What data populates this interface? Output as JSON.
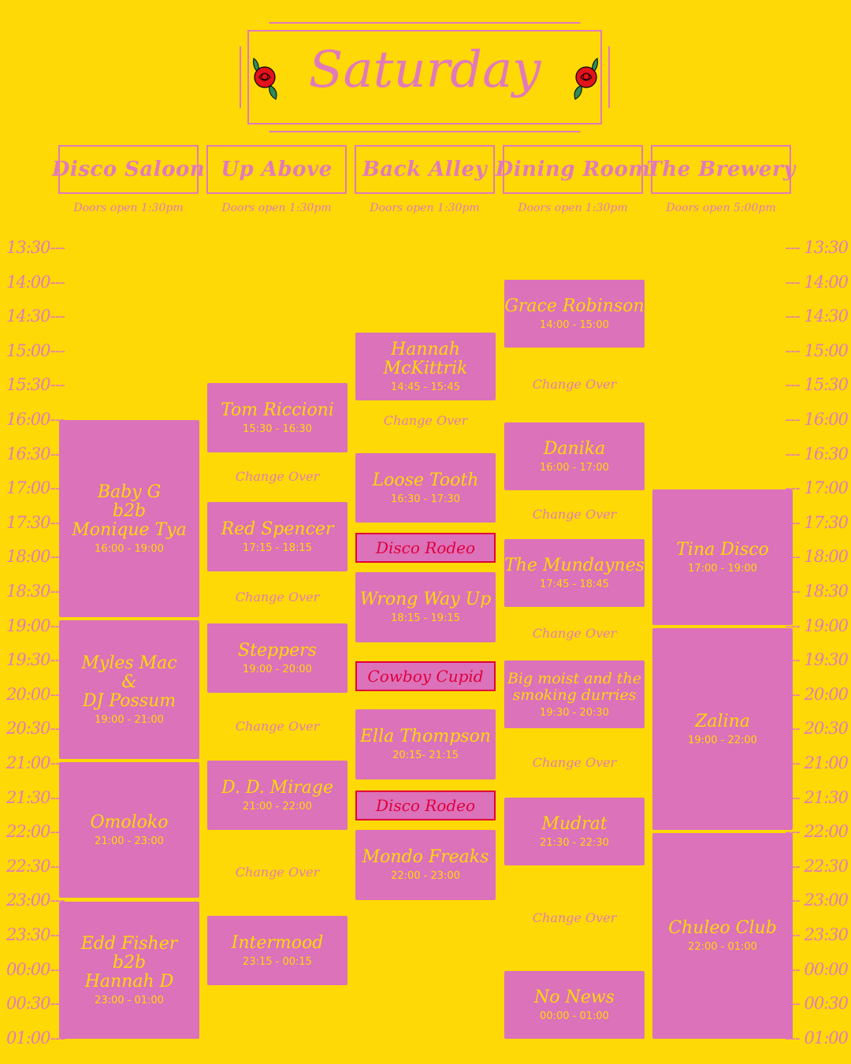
{
  "title": "Saturday",
  "venues": [
    {
      "name": "Disco Saloon",
      "doors": "Doors open 1:30pm"
    },
    {
      "name": "Up Above",
      "doors": "Doors open 1:30pm"
    },
    {
      "name": "Back Alley",
      "doors": "Doors open 1:30pm"
    },
    {
      "name": "Dining Room",
      "doors": "Doors open 1:30pm"
    },
    {
      "name": "The Brewery",
      "doors": "Doors open 5:00pm"
    }
  ],
  "ticks": [
    "13:30",
    "14:00",
    "14:30",
    "15:00",
    "15:30",
    "16:00",
    "16:30",
    "17:00",
    "17:30",
    "18:00",
    "18:30",
    "19:00",
    "19:30",
    "20:00",
    "20:30",
    "21:00",
    "21:30",
    "22:00",
    "22:30",
    "23:00",
    "23:30",
    "00:00",
    "00:30",
    "01:00"
  ],
  "tick_suffix_left": "---",
  "tick_prefix_right": "---",
  "sets": {
    "disco_saloon": [
      {
        "name": "Baby G\nb2b\nMonique Tya",
        "time": "16:00 - 19:00"
      },
      {
        "name": "Myles Mac\n&\nDJ Possum",
        "time": "19:00 - 21:00"
      },
      {
        "name": "Omoloko",
        "time": "21:00 - 23:00"
      },
      {
        "name": "Edd Fisher\nb2b\nHannah D",
        "time": "23:00 - 01:00"
      }
    ],
    "up_above": [
      {
        "name": "Tom Riccioni",
        "time": "15:30 - 16:30"
      },
      {
        "name": "Red Spencer",
        "time": "17:15 - 18:15"
      },
      {
        "name": "Steppers",
        "time": "19:00 - 20:00"
      },
      {
        "name": "D. D. Mirage",
        "time": "21:00 - 22:00"
      },
      {
        "name": "Intermood",
        "time": "23:15 - 00:15"
      }
    ],
    "back_alley": [
      {
        "name": "Hannah\nMcKittrik",
        "time": "14:45 - 15:45"
      },
      {
        "name": "Loose Tooth",
        "time": "16:30 - 17:30"
      },
      {
        "name": "Wrong Way Up",
        "time": "18:15 - 19:15"
      },
      {
        "name": "Ella Thompson",
        "time": "20:15- 21:15"
      },
      {
        "name": "Mondo Freaks",
        "time": "22:00 - 23:00"
      }
    ],
    "dining_room": [
      {
        "name": "Grace Robinson",
        "time": "14:00 - 15:00"
      },
      {
        "name": "Danika",
        "time": "16:00 - 17:00"
      },
      {
        "name": "The Mundaynes",
        "time": "17:45 - 18:45"
      },
      {
        "name": "Big moist and the\nsmoking durries",
        "time": "19:30 - 20:30"
      },
      {
        "name": "Mudrat",
        "time": "21:30 - 22:30"
      },
      {
        "name": "No News",
        "time": "00:00 - 01:00"
      }
    ],
    "the_brewery": [
      {
        "name": "Tina Disco",
        "time": "17:00 - 19:00"
      },
      {
        "name": "Zalina",
        "time": "19:00 - 22:00"
      },
      {
        "name": "Chuleo Club",
        "time": "22:00 - 01:00"
      }
    ]
  },
  "change_over_label": "Change Over",
  "specials": [
    "Disco Rodeo",
    "Cowboy Cupid",
    "Disco Rodeo"
  ]
}
